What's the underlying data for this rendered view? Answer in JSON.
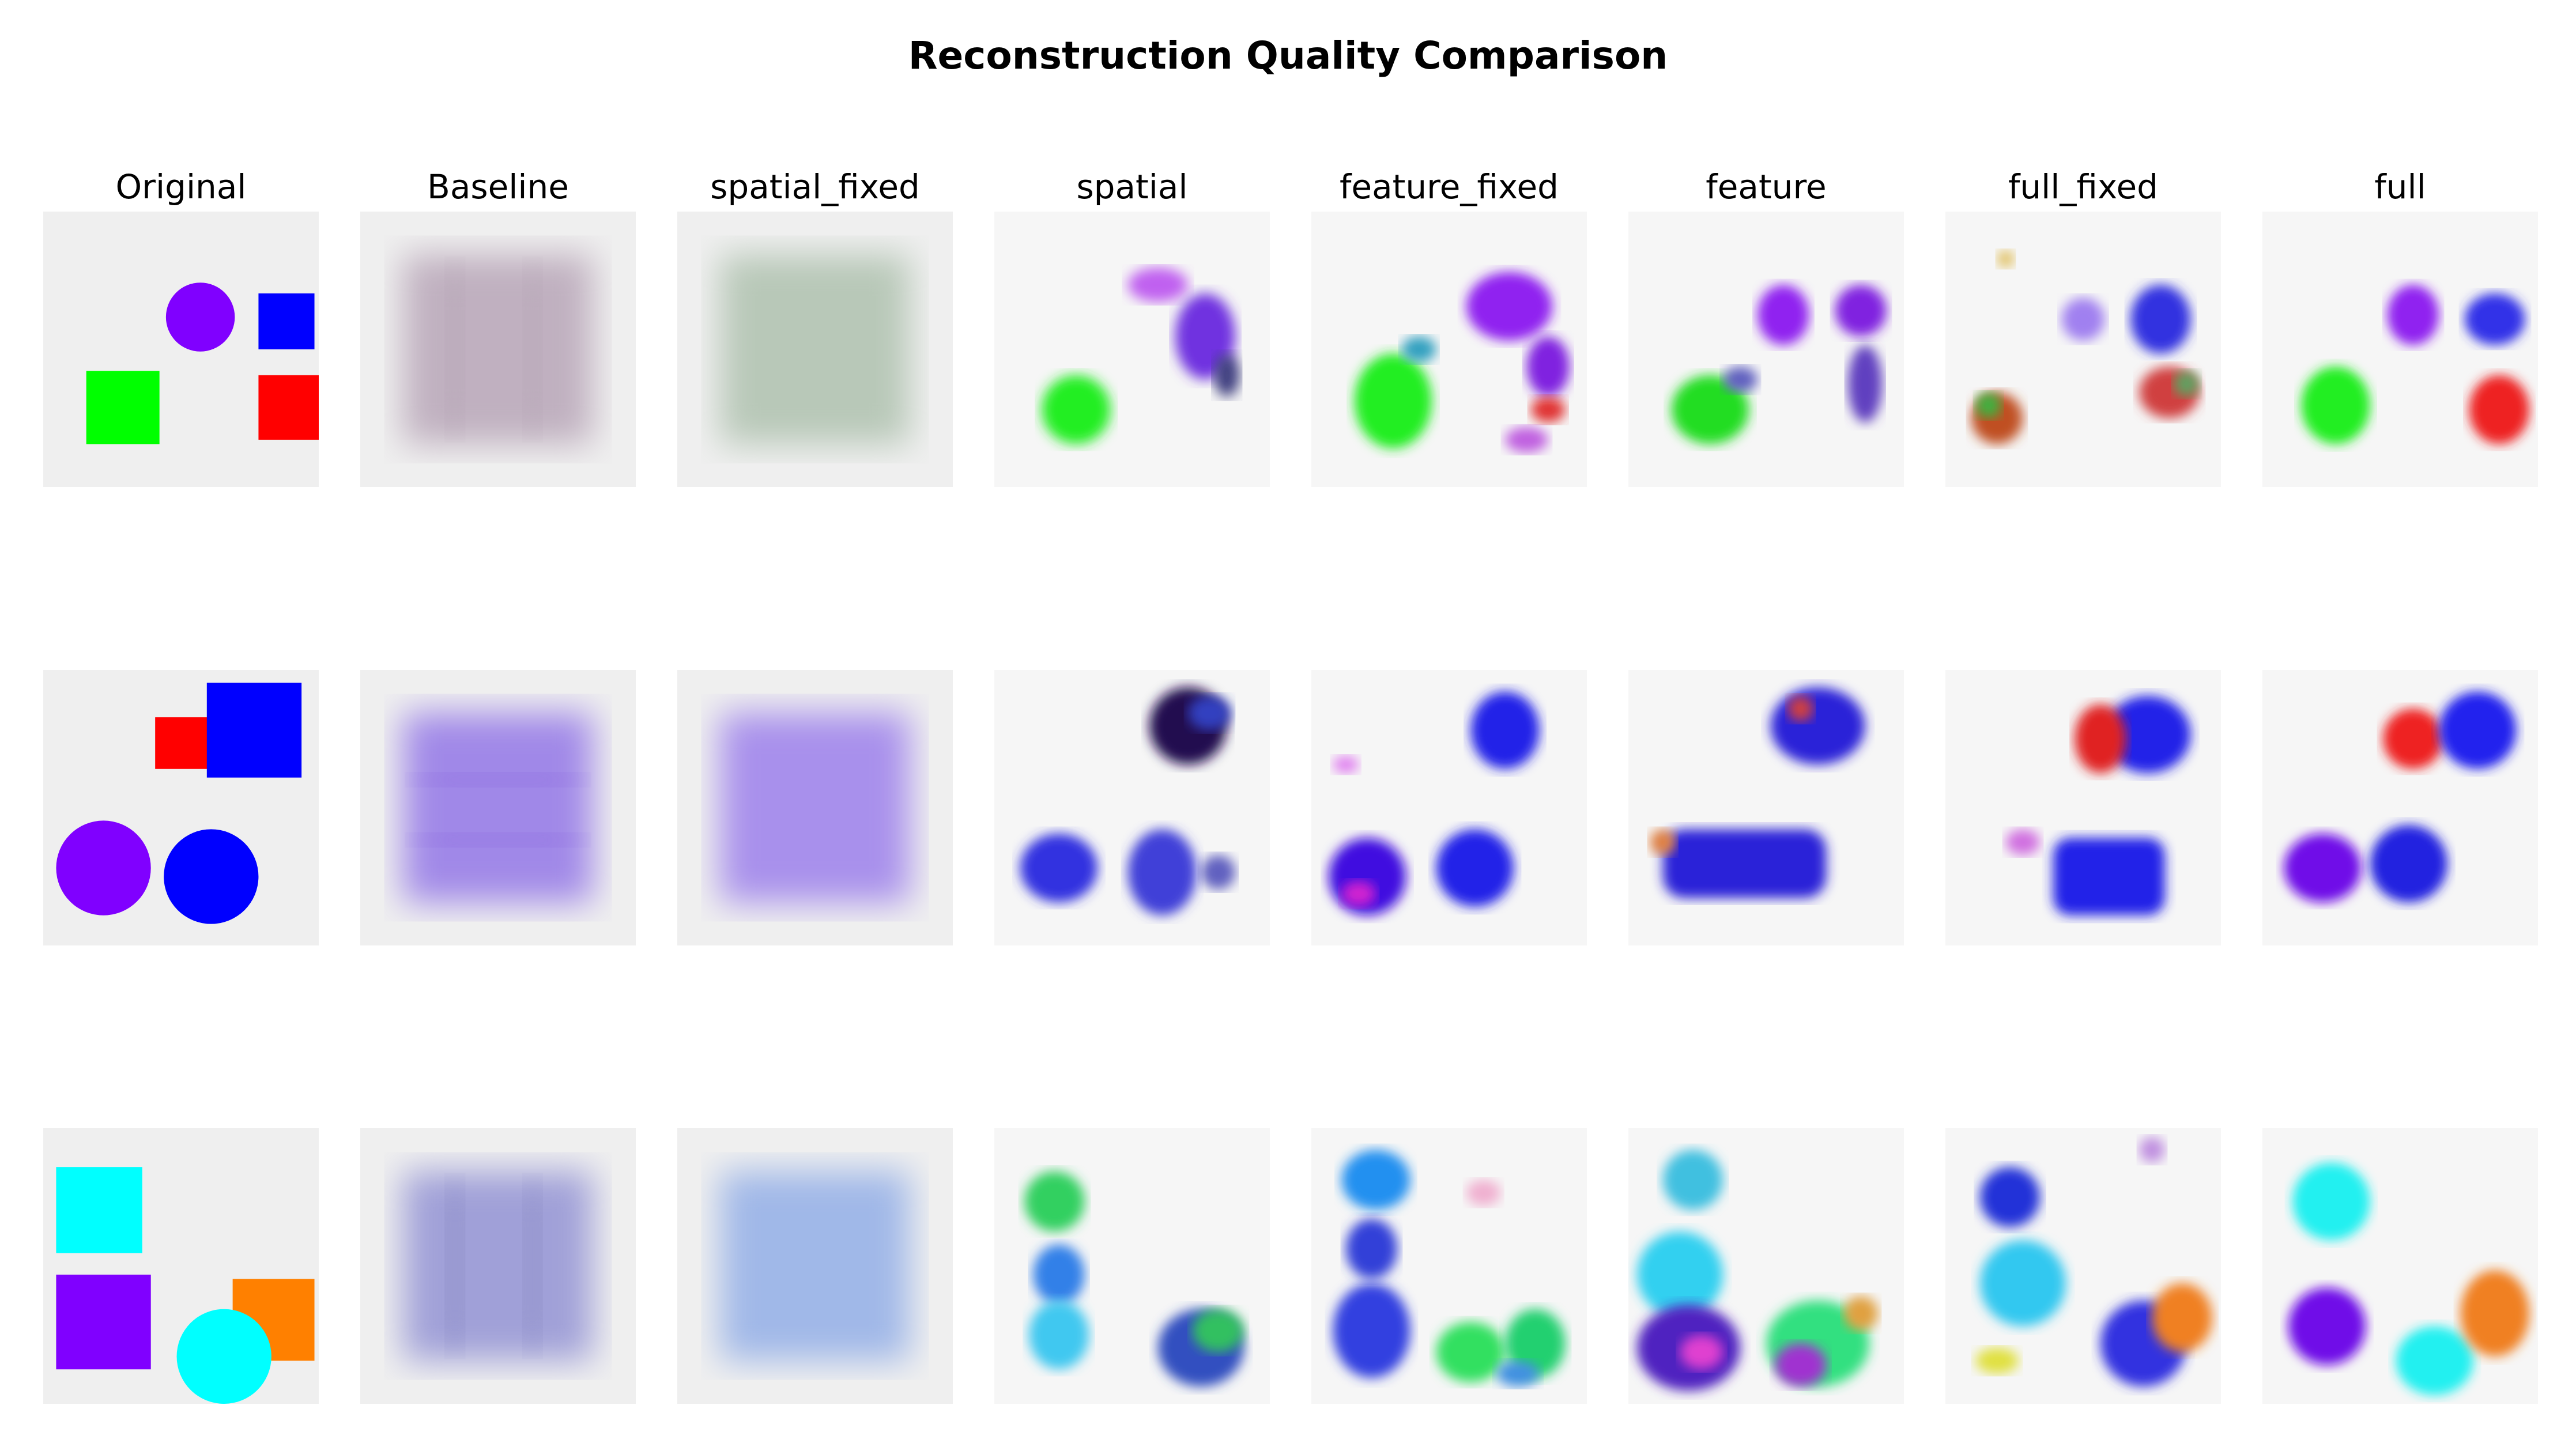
{
  "figure": {
    "title": "Reconstruction Quality Comparison"
  },
  "columns": [
    {
      "key": "original",
      "label": "Original"
    },
    {
      "key": "baseline",
      "label": "Baseline"
    },
    {
      "key": "spatial_fixed",
      "label": "spatial_fixed"
    },
    {
      "key": "spatial",
      "label": "spatial"
    },
    {
      "key": "feature_fixed",
      "label": "feature_fixed"
    },
    {
      "key": "feature",
      "label": "feature"
    },
    {
      "key": "full_fixed",
      "label": "full_fixed"
    },
    {
      "key": "full",
      "label": "full"
    }
  ],
  "colors": {
    "background": "#efefef",
    "green": "#00ff00",
    "purple": "#8000ff",
    "blue": "#0000ff",
    "red": "#ff0000",
    "cyan": "#00ffff",
    "orange": "#ff8000"
  },
  "rows": [
    {
      "name": "row-1",
      "original_shapes": [
        "purple-circle",
        "blue-square",
        "green-square",
        "red-square"
      ]
    },
    {
      "name": "row-2",
      "original_shapes": [
        "red-square",
        "blue-square",
        "purple-circle",
        "blue-circle"
      ]
    },
    {
      "name": "row-3",
      "original_shapes": [
        "cyan-square",
        "purple-square",
        "orange-square",
        "cyan-circle"
      ]
    }
  ]
}
